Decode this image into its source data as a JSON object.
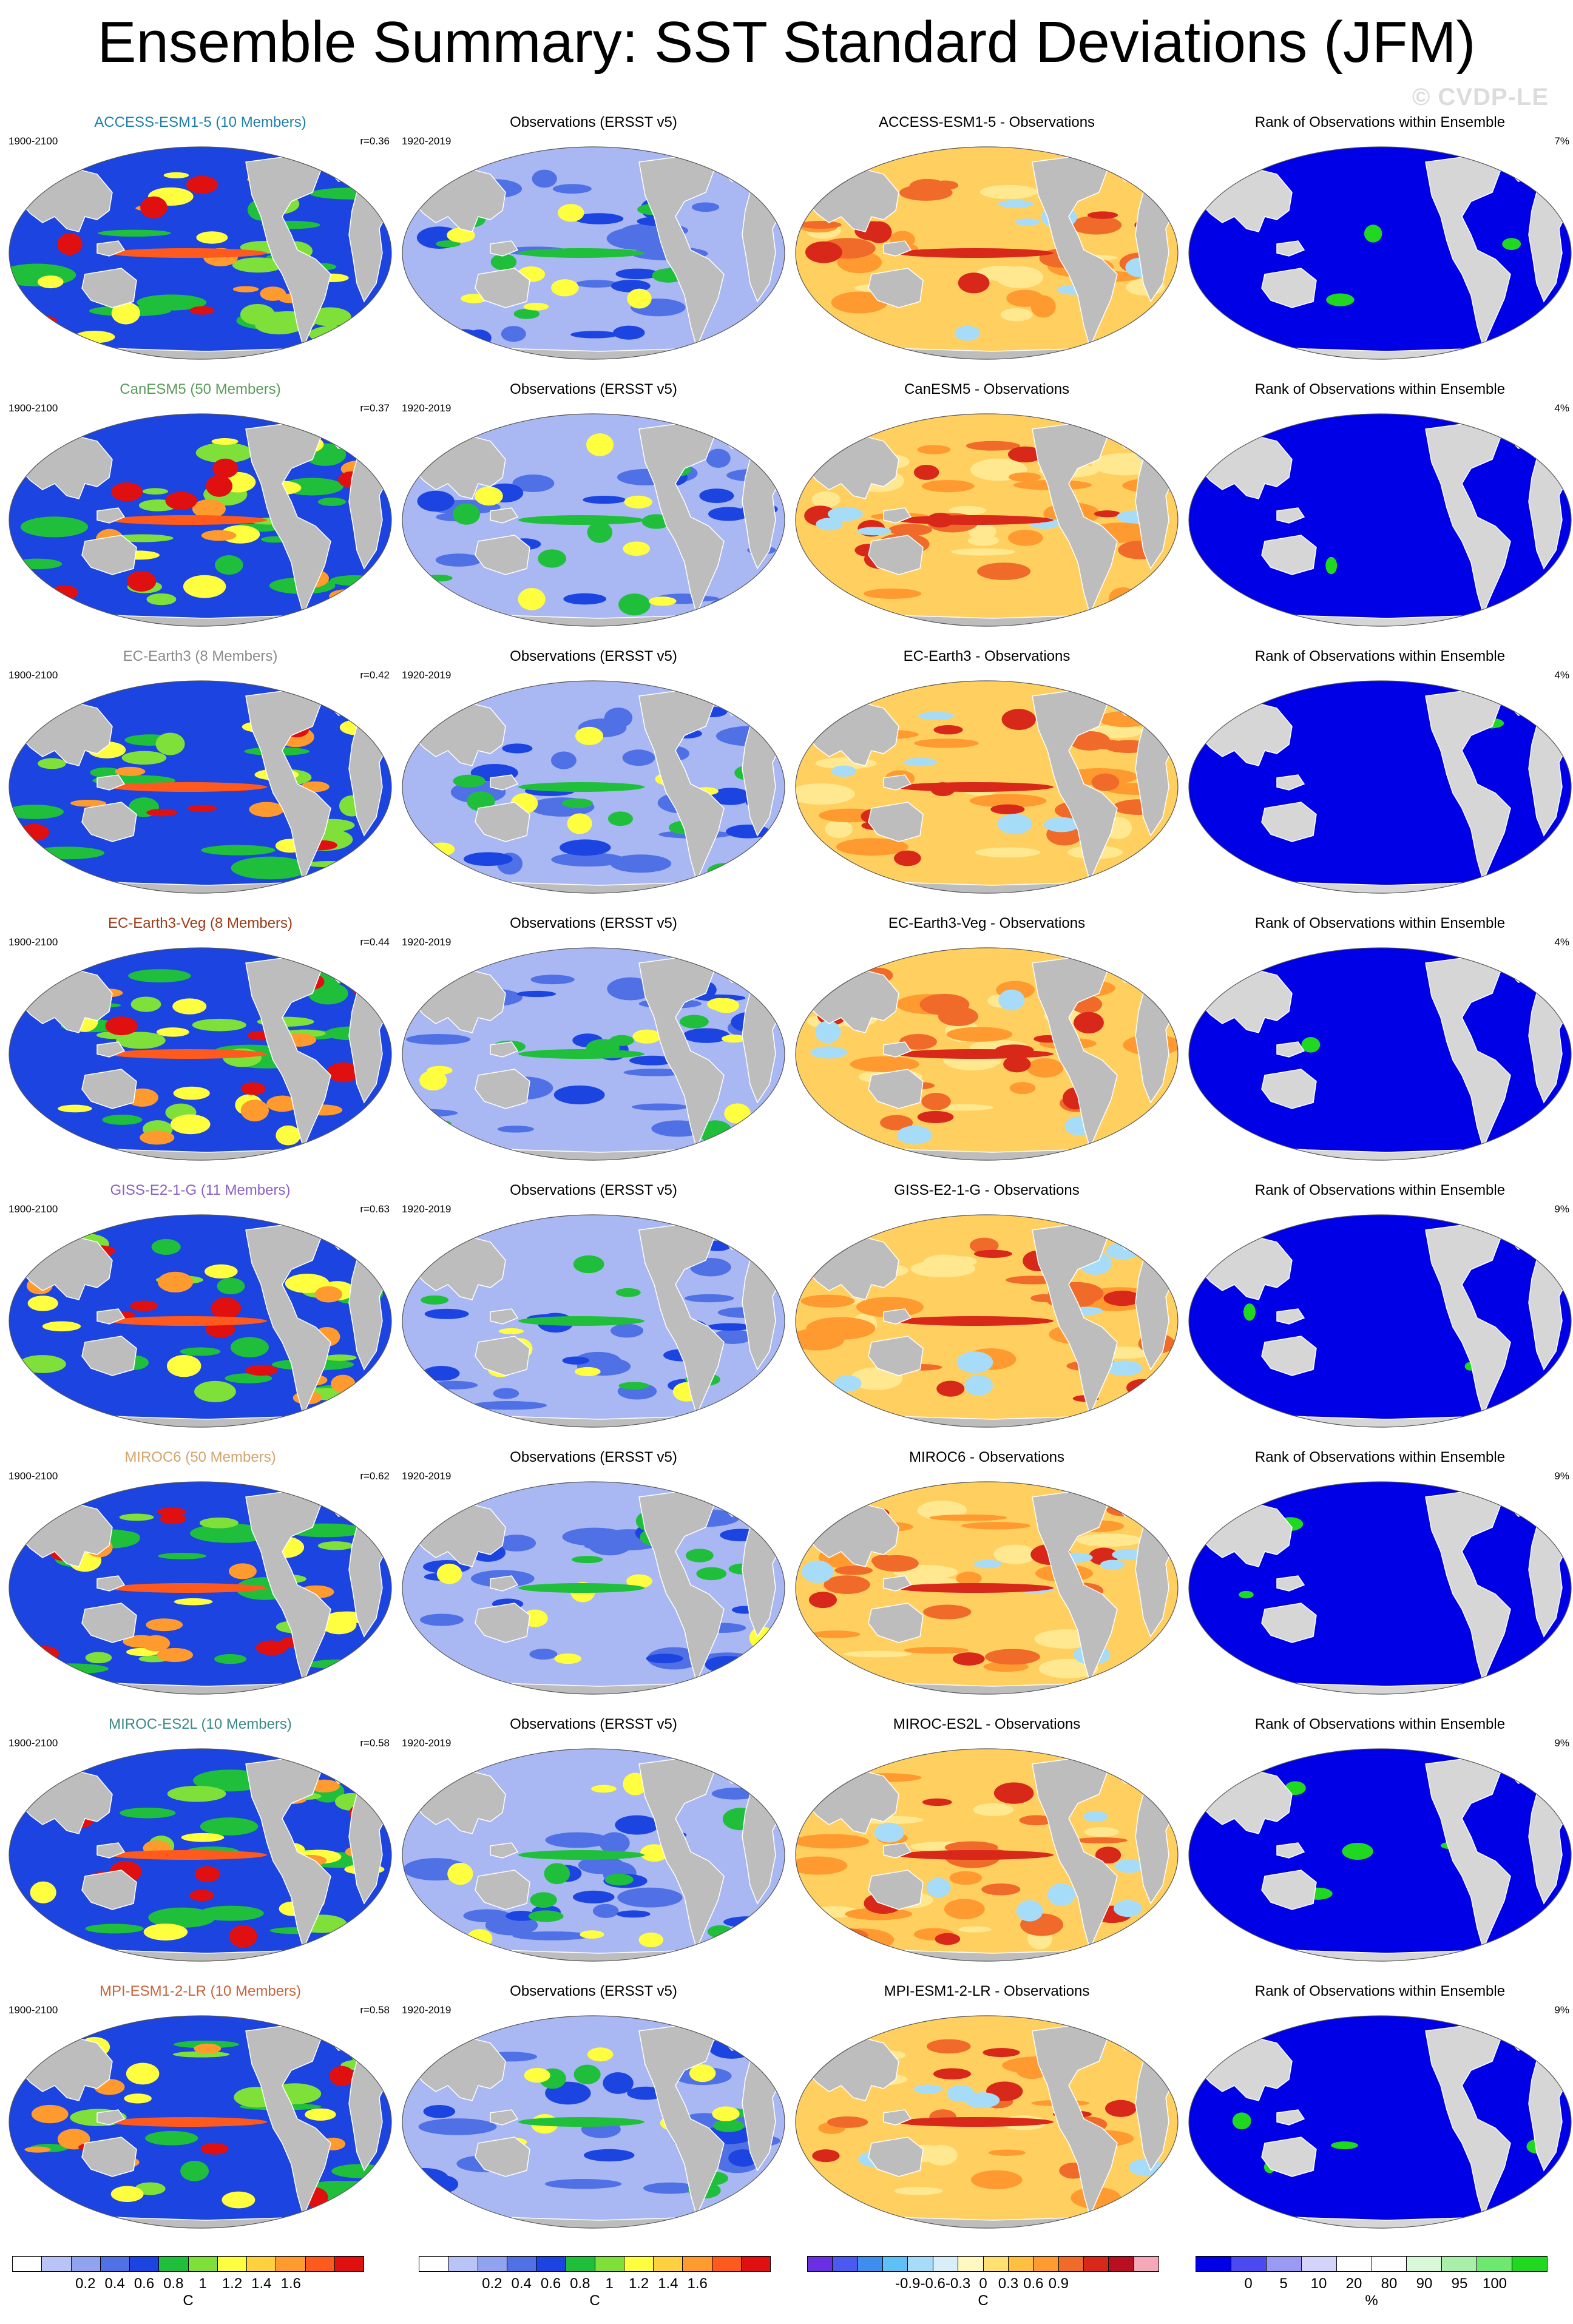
{
  "title": "Ensemble Summary: SST Standard Deviations (JFM)",
  "watermark": "© CVDP-LE",
  "rows": [
    {
      "model": "ACCESS-ESM1-5",
      "ens_title": "ACCESS-ESM1-5 (10 Members)",
      "title_color": "#1f7fa8",
      "years": "1900-2100",
      "r": "r=0.36",
      "obs_title": "Observations (ERSST v5)",
      "obs_years": "1920-2019",
      "diff_title": "ACCESS-ESM1-5 - Observations",
      "rank_title": "Rank of Observations within Ensemble",
      "rank_pct": "7%",
      "ens_level": 0.55,
      "diff_level": 0.62,
      "rank_green": 0.07
    },
    {
      "model": "CanESM5",
      "ens_title": "CanESM5 (50 Members)",
      "title_color": "#5a9a5a",
      "years": "1900-2100",
      "r": "r=0.37",
      "obs_title": "Observations (ERSST v5)",
      "obs_years": "1920-2019",
      "diff_title": "CanESM5 - Observations",
      "rank_title": "Rank of Observations within Ensemble",
      "rank_pct": "4%",
      "ens_level": 0.62,
      "diff_level": 0.78,
      "rank_green": 0.03
    },
    {
      "model": "EC-Earth3",
      "ens_title": "EC-Earth3 (8 Members)",
      "title_color": "#8a8a8a",
      "years": "1900-2100",
      "r": "r=0.42",
      "obs_title": "Observations (ERSST v5)",
      "obs_years": "1920-2019",
      "diff_title": "EC-Earth3 - Observations",
      "rank_title": "Rank of Observations within Ensemble",
      "rank_pct": "4%",
      "ens_level": 0.6,
      "diff_level": 0.72,
      "rank_green": 0.02
    },
    {
      "model": "EC-Earth3-Veg",
      "ens_title": "EC-Earth3-Veg (8 Members)",
      "title_color": "#9c3a14",
      "years": "1900-2100",
      "r": "r=0.44",
      "obs_title": "Observations (ERSST v5)",
      "obs_years": "1920-2019",
      "diff_title": "EC-Earth3-Veg - Observations",
      "rank_title": "Rank of Observations within Ensemble",
      "rank_pct": "4%",
      "ens_level": 0.58,
      "diff_level": 0.7,
      "rank_green": 0.02
    },
    {
      "model": "GISS-E2-1-G",
      "ens_title": "GISS-E2-1-G (11 Members)",
      "title_color": "#8a5fc4",
      "years": "1900-2100",
      "r": "r=0.63",
      "obs_title": "Observations (ERSST v5)",
      "obs_years": "1920-2019",
      "diff_title": "GISS-E2-1-G - Observations",
      "rank_title": "Rank of Observations within Ensemble",
      "rank_pct": "9%",
      "ens_level": 0.45,
      "diff_level": 0.58,
      "rank_green": 0.08
    },
    {
      "model": "MIROC6",
      "ens_title": "MIROC6 (50 Members)",
      "title_color": "#d4a36a",
      "years": "1900-2100",
      "r": "r=0.62",
      "obs_title": "Observations (ERSST v5)",
      "obs_years": "1920-2019",
      "diff_title": "MIROC6 - Observations",
      "rank_title": "Rank of Observations within Ensemble",
      "rank_pct": "9%",
      "ens_level": 0.5,
      "diff_level": 0.5,
      "rank_green": 0.06
    },
    {
      "model": "MIROC-ES2L",
      "ens_title": "MIROC-ES2L (10 Members)",
      "title_color": "#3a8a8a",
      "years": "1900-2100",
      "r": "r=0.58",
      "obs_title": "Observations (ERSST v5)",
      "obs_years": "1920-2019",
      "diff_title": "MIROC-ES2L - Observations",
      "rank_title": "Rank of Observations within Ensemble",
      "rank_pct": "9%",
      "ens_level": 0.48,
      "diff_level": 0.5,
      "rank_green": 0.09
    },
    {
      "model": "MPI-ESM1-2-LR",
      "ens_title": "MPI-ESM1-2-LR (10 Members)",
      "title_color": "#c8643c",
      "years": "1900-2100",
      "r": "r=0.58",
      "obs_title": "Observations (ERSST v5)",
      "obs_years": "1920-2019",
      "diff_title": "MPI-ESM1-2-LR - Observations",
      "rank_title": "Rank of Observations within Ensemble",
      "rank_pct": "9%",
      "ens_level": 0.4,
      "diff_level": 0.48,
      "rank_green": 0.1
    }
  ],
  "colorbars": [
    {
      "name": "sd",
      "unit": "C",
      "ticks": [
        "0.2",
        "0.4",
        "0.6",
        "0.8",
        "1",
        "1.2",
        "1.4",
        "1.6"
      ],
      "colors": [
        "#ffffff",
        "#b8c4f5",
        "#8fa3ee",
        "#5070e6",
        "#1c44e0",
        "#1fbf3c",
        "#7fe03a",
        "#ffff40",
        "#ffd040",
        "#ff9a2e",
        "#ff5a1e",
        "#e01010"
      ]
    },
    {
      "name": "sd-obs",
      "unit": "C",
      "ticks": [
        "0.2",
        "0.4",
        "0.6",
        "0.8",
        "1",
        "1.2",
        "1.4",
        "1.6"
      ],
      "colors": [
        "#ffffff",
        "#b8c4f5",
        "#8fa3ee",
        "#5070e6",
        "#1c44e0",
        "#1fbf3c",
        "#7fe03a",
        "#ffff40",
        "#ffd040",
        "#ff9a2e",
        "#ff5a1e",
        "#e01010"
      ]
    },
    {
      "name": "diff",
      "unit": "C",
      "ticks": [
        "-0.9",
        "-0.6",
        "-0.3",
        "0",
        "0.3",
        "0.6",
        "0.9"
      ],
      "colors": [
        "#6a2fe0",
        "#4a5af0",
        "#3e8ef0",
        "#5ec0f5",
        "#a6dcf8",
        "#d8eef8",
        "#fff8c0",
        "#ffe070",
        "#ffc040",
        "#ff9a30",
        "#f06a2a",
        "#d8281a",
        "#b81020",
        "#f4a8b8"
      ]
    },
    {
      "name": "rank",
      "unit": "%",
      "ticks": [
        "0",
        "5",
        "10",
        "20",
        "80",
        "90",
        "95",
        "100"
      ],
      "colors": [
        "#0000e6",
        "#4a4af0",
        "#9a9af5",
        "#d4d4fa",
        "#ffffff",
        "#ffffff",
        "#d8f8d8",
        "#a8f0a8",
        "#6ee86e",
        "#20d820"
      ]
    }
  ]
}
